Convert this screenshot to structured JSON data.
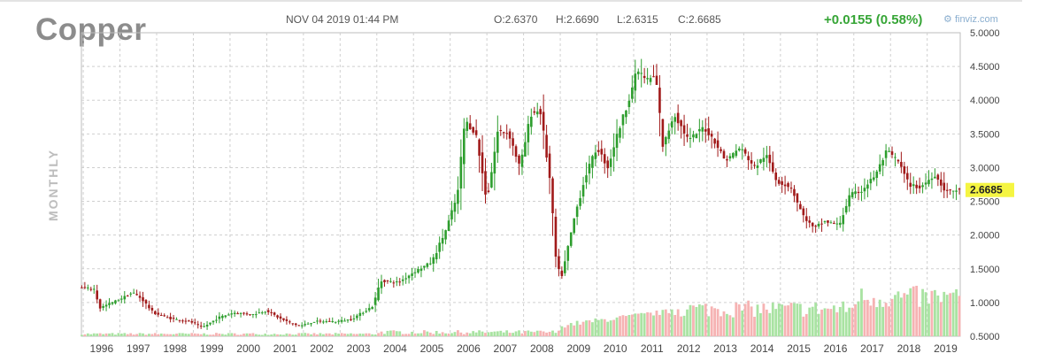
{
  "header": {
    "title": "Copper",
    "datetime": "NOV 04 2019 01:44 PM",
    "open": "O:2.6370",
    "high": "H:2.6690",
    "low": "L:2.6315",
    "close": "C:2.6685",
    "change": "+0.0155 (0.58%)",
    "brand": "finviz.com",
    "period_label": "MONTHLY"
  },
  "colors": {
    "up": "#2e9e2e",
    "down": "#a11a1a",
    "volume_up": "#a9e3a2",
    "volume_down": "#f6b3b3",
    "price_tag": "#f5f542",
    "grid": "#cfcfcf"
  },
  "chart_data": {
    "type": "candlestick",
    "period": "monthly",
    "y_ticks": [
      "5.0000",
      "4.5000",
      "4.0000",
      "3.5000",
      "3.0000",
      "2.5000",
      "2.0000",
      "1.5000",
      "1.0000",
      "0.5000"
    ],
    "ylim": [
      0.5,
      5.0
    ],
    "x_ticks": [
      "1996",
      "1997",
      "1998",
      "1999",
      "2000",
      "2001",
      "2002",
      "2003",
      "2004",
      "2005",
      "2006",
      "2007",
      "2008",
      "2009",
      "2010",
      "2011",
      "2012",
      "2013",
      "2014",
      "2015",
      "2016",
      "2017",
      "2018",
      "2019"
    ],
    "xlim": [
      1995.95,
      2019.9
    ],
    "last_price": "2.6685",
    "last_value": 2.6685,
    "price_path": [
      [
        1995.95,
        1.22
      ],
      [
        1996.3,
        1.2
      ],
      [
        1996.45,
        0.92
      ],
      [
        1996.7,
        0.98
      ],
      [
        1997.0,
        1.05
      ],
      [
        1997.35,
        1.15
      ],
      [
        1997.6,
        1.05
      ],
      [
        1997.9,
        0.85
      ],
      [
        1998.4,
        0.76
      ],
      [
        1998.9,
        0.72
      ],
      [
        1999.25,
        0.63
      ],
      [
        1999.7,
        0.78
      ],
      [
        2000.1,
        0.85
      ],
      [
        2000.6,
        0.82
      ],
      [
        2001.0,
        0.88
      ],
      [
        2001.4,
        0.75
      ],
      [
        2001.9,
        0.65
      ],
      [
        2002.3,
        0.72
      ],
      [
        2002.9,
        0.72
      ],
      [
        2003.3,
        0.75
      ],
      [
        2003.9,
        0.95
      ],
      [
        2004.1,
        1.32
      ],
      [
        2004.6,
        1.3
      ],
      [
        2005.0,
        1.45
      ],
      [
        2005.5,
        1.6
      ],
      [
        2005.9,
        2.1
      ],
      [
        2006.2,
        2.6
      ],
      [
        2006.4,
        3.7
      ],
      [
        2006.7,
        3.5
      ],
      [
        2007.0,
        2.5
      ],
      [
        2007.3,
        3.55
      ],
      [
        2007.6,
        3.5
      ],
      [
        2007.9,
        3.0
      ],
      [
        2008.2,
        3.8
      ],
      [
        2008.45,
        3.85
      ],
      [
        2008.7,
        2.9
      ],
      [
        2008.9,
        1.5
      ],
      [
        2009.05,
        1.4
      ],
      [
        2009.4,
        2.3
      ],
      [
        2009.7,
        2.9
      ],
      [
        2010.0,
        3.3
      ],
      [
        2010.3,
        3.0
      ],
      [
        2010.5,
        3.4
      ],
      [
        2010.8,
        3.9
      ],
      [
        2011.1,
        4.45
      ],
      [
        2011.35,
        4.3
      ],
      [
        2011.6,
        4.35
      ],
      [
        2011.8,
        3.3
      ],
      [
        2012.1,
        3.8
      ],
      [
        2012.5,
        3.4
      ],
      [
        2012.9,
        3.6
      ],
      [
        2013.2,
        3.4
      ],
      [
        2013.5,
        3.1
      ],
      [
        2013.9,
        3.3
      ],
      [
        2014.3,
        3.0
      ],
      [
        2014.6,
        3.2
      ],
      [
        2014.9,
        2.8
      ],
      [
        2015.3,
        2.7
      ],
      [
        2015.6,
        2.3
      ],
      [
        2015.9,
        2.1
      ],
      [
        2016.2,
        2.2
      ],
      [
        2016.6,
        2.15
      ],
      [
        2016.9,
        2.6
      ],
      [
        2017.2,
        2.65
      ],
      [
        2017.6,
        2.9
      ],
      [
        2017.9,
        3.25
      ],
      [
        2018.2,
        3.1
      ],
      [
        2018.5,
        2.75
      ],
      [
        2018.8,
        2.7
      ],
      [
        2019.2,
        2.9
      ],
      [
        2019.5,
        2.65
      ],
      [
        2019.9,
        2.6685
      ]
    ]
  }
}
